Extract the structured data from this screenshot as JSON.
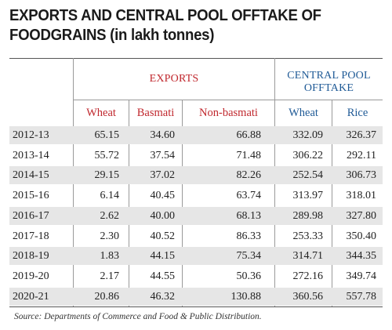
{
  "title": {
    "line1": "EXPORTS AND CENTRAL POOL OFFTAKE OF",
    "line2_main": "FOODGRAINS",
    "line2_unit": " (in lakh tonnes)"
  },
  "groups": {
    "exports": "EXPORTS",
    "pool_line1": "CENTRAL POOL",
    "pool_line2": "OFFTAKE"
  },
  "source": "Source: Departments of Commerce and Food & Public Distribution.",
  "colors": {
    "exports_red": "#c0272d",
    "pool_blue": "#1f5a96",
    "row_shade": "#e6e6e6"
  },
  "chart_data": {
    "type": "table",
    "columns": [
      "Wheat",
      "Basmati",
      "Non-basmati",
      "Wheat",
      "Rice"
    ],
    "rows": [
      {
        "year": "2012-13",
        "values": [
          "65.15",
          "34.60",
          "66.88",
          "332.09",
          "326.37"
        ]
      },
      {
        "year": "2013-14",
        "values": [
          "55.72",
          "37.54",
          "71.48",
          "306.22",
          "292.11"
        ]
      },
      {
        "year": "2014-15",
        "values": [
          "29.15",
          "37.02",
          "82.26",
          "252.54",
          "306.73"
        ]
      },
      {
        "year": "2015-16",
        "values": [
          "6.14",
          "40.45",
          "63.74",
          "313.97",
          "318.01"
        ]
      },
      {
        "year": "2016-17",
        "values": [
          "2.62",
          "40.00",
          "68.13",
          "289.98",
          "327.80"
        ]
      },
      {
        "year": "2017-18",
        "values": [
          "2.30",
          "40.52",
          "86.33",
          "253.33",
          "350.40"
        ]
      },
      {
        "year": "2018-19",
        "values": [
          "1.83",
          "44.15",
          "75.34",
          "314.71",
          "344.35"
        ]
      },
      {
        "year": "2019-20",
        "values": [
          "2.17",
          "44.55",
          "50.36",
          "272.16",
          "349.74"
        ]
      },
      {
        "year": "2020-21",
        "values": [
          "20.86",
          "46.32",
          "130.88",
          "360.56",
          "557.78"
        ]
      }
    ]
  }
}
